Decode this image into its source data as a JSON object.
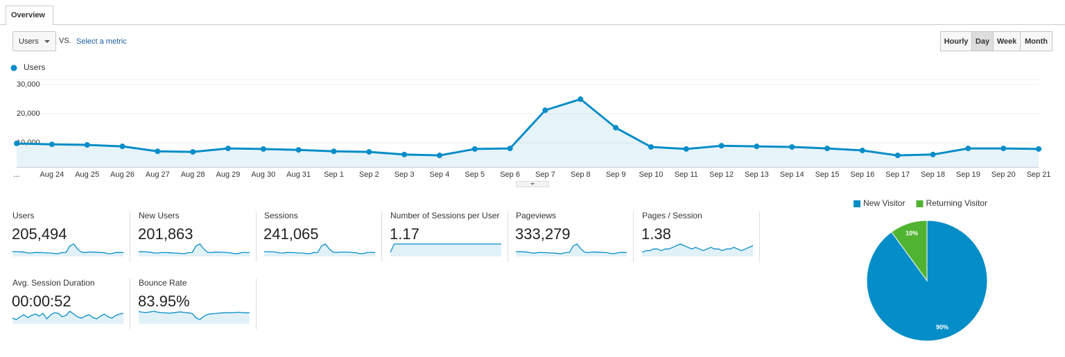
{
  "tabs": [
    "Overview"
  ],
  "controls": {
    "metric": "Users",
    "vs": "VS.",
    "select_metric": "Select a metric",
    "intervals": [
      "Hourly",
      "Day",
      "Week",
      "Month"
    ],
    "active_interval": 1
  },
  "chart_data": [
    {
      "type": "line",
      "categories": [
        "...",
        "Aug 24",
        "Aug 25",
        "Aug 26",
        "Aug 27",
        "Aug 28",
        "Aug 29",
        "Aug 30",
        "Aug 31",
        "Sep 1",
        "Sep 2",
        "Sep 3",
        "Sep 4",
        "Sep 5",
        "Sep 6",
        "Sep 7",
        "Sep 8",
        "Sep 9",
        "Sep 10",
        "Sep 11",
        "Sep 12",
        "Sep 13",
        "Sep 14",
        "Sep 15",
        "Sep 16",
        "Sep 17",
        "Sep 18",
        "Sep 19",
        "Sep 20",
        "Sep 21"
      ],
      "series": [
        {
          "name": "Users",
          "color": "#058dc7",
          "values": [
            9800,
            9500,
            9300,
            8800,
            7100,
            6900,
            8100,
            7900,
            7600,
            7100,
            6900,
            6000,
            5700,
            7900,
            8100,
            21200,
            25000,
            15200,
            8600,
            7900,
            9000,
            8800,
            8600,
            8100,
            7400,
            5700,
            6000,
            8100,
            8100,
            7900
          ]
        }
      ],
      "ylim": [
        1700,
        31900
      ],
      "yticks": [
        {
          "value": 10000,
          "label": "10,000"
        },
        {
          "value": 20000,
          "label": "20,000"
        },
        {
          "value": 30000,
          "label": "30,000"
        }
      ],
      "grid": true,
      "area": true
    },
    {
      "type": "pie",
      "categories": [
        "New Visitor",
        "Returning Visitor"
      ],
      "values": [
        90,
        10
      ],
      "value_labels": [
        "90%",
        "10%"
      ],
      "colors": [
        "#058dc7",
        "#50b432"
      ],
      "legend": "top"
    }
  ],
  "metrics": [
    {
      "label": "Users",
      "value": "205,494"
    },
    {
      "label": "New Users",
      "value": "201,863",
      "sparkline": [
        9600,
        9300,
        9100,
        8600,
        7000,
        6800,
        7900,
        7700,
        7400,
        6900,
        6700,
        5900,
        5600,
        7700,
        7900,
        20800,
        24600,
        14900,
        8400,
        7700,
        8800,
        8600,
        8400,
        7900,
        7200,
        5600,
        5900,
        7900,
        7900,
        7700
      ]
    },
    {
      "label": "Sessions",
      "value": "241,065",
      "sparkline": [
        11400,
        11100,
        10900,
        10300,
        8300,
        8100,
        9500,
        9200,
        8900,
        8300,
        8100,
        7000,
        6700,
        9200,
        9500,
        24800,
        29200,
        17800,
        10100,
        9200,
        10500,
        10300,
        10100,
        9500,
        8700,
        6700,
        7000,
        9500,
        9500,
        9200
      ]
    },
    {
      "label": "Number of Sessions per User",
      "value": "1.17",
      "sparkline": [
        1.16,
        1.17,
        1.17,
        1.17,
        1.17,
        1.17,
        1.17,
        1.17,
        1.17,
        1.17,
        1.17,
        1.17,
        1.17,
        1.17,
        1.17,
        1.17,
        1.17,
        1.17,
        1.17,
        1.17,
        1.17,
        1.17,
        1.17,
        1.17,
        1.17,
        1.17,
        1.17,
        1.17,
        1.17,
        1.17
      ]
    },
    {
      "label": "Pageviews",
      "value": "333,279",
      "sparkline": [
        15700,
        15300,
        15000,
        14200,
        11500,
        11100,
        13100,
        12700,
        12300,
        11500,
        11100,
        9700,
        9200,
        12700,
        13100,
        34300,
        40400,
        24600,
        13900,
        12700,
        14500,
        14200,
        13900,
        13100,
        12000,
        9200,
        9700,
        13100,
        13100,
        12700
      ]
    },
    {
      "label": "Pages / Session",
      "value": "1.38",
      "sparkline": [
        1.36,
        1.37,
        1.37,
        1.38,
        1.38,
        1.37,
        1.38,
        1.38,
        1.39,
        1.4,
        1.41,
        1.4,
        1.39,
        1.38,
        1.39,
        1.38,
        1.37,
        1.38,
        1.39,
        1.38,
        1.38,
        1.37,
        1.38,
        1.38,
        1.39,
        1.38,
        1.37,
        1.38,
        1.39,
        1.4
      ]
    },
    {
      "label": "Avg. Session Duration",
      "value": "00:00:52",
      "sparkline": [
        50,
        48,
        52,
        55,
        51,
        54,
        56,
        53,
        57,
        49,
        55,
        58,
        57,
        52,
        54,
        60,
        56,
        52,
        50,
        53,
        55,
        51,
        49,
        53,
        56,
        52,
        50,
        54,
        56,
        57
      ]
    },
    {
      "label": "Bounce Rate",
      "value": "83.95%",
      "sparkline": [
        84.5,
        84.3,
        84.2,
        84.4,
        84.6,
        84.3,
        84.2,
        84.1,
        84.0,
        84.1,
        84.3,
        84.4,
        84.2,
        84.1,
        83.9,
        82.5,
        82.0,
        83.0,
        83.6,
        83.8,
        83.9,
        84.0,
        84.1,
        84.2,
        84.1,
        84.2,
        84.3,
        84.2,
        84.1,
        84.2
      ]
    }
  ]
}
